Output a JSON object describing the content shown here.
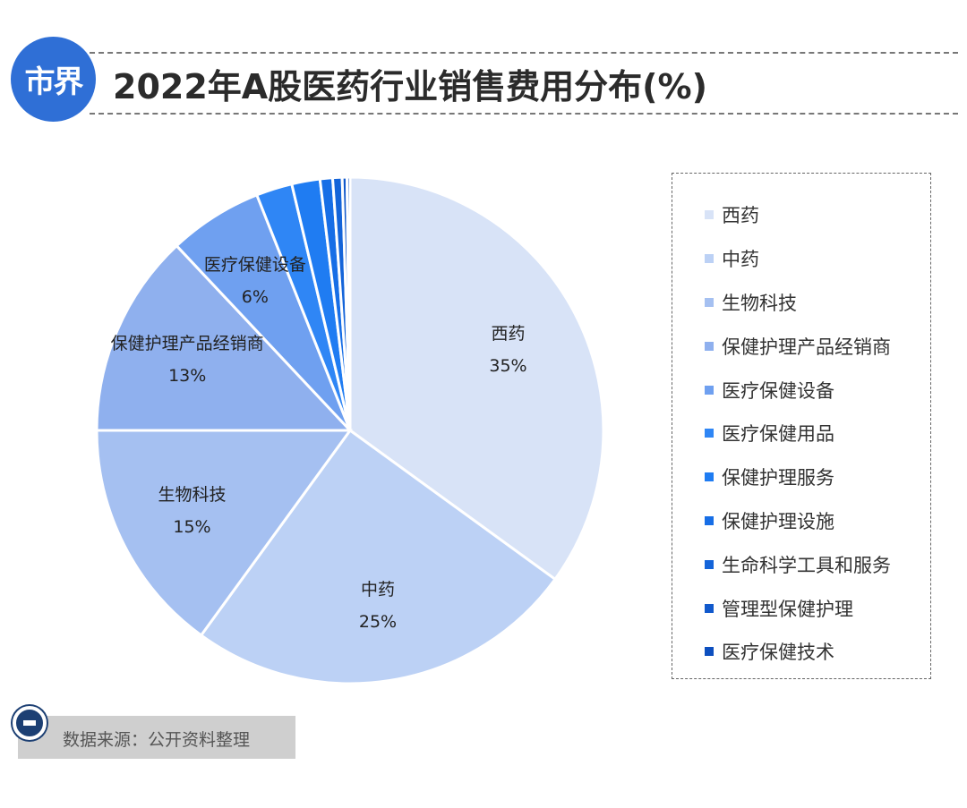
{
  "header": {
    "logo_text": "市界",
    "title": "2022年A股医药行业销售费用分布(%)"
  },
  "chart_data": {
    "type": "pie",
    "title": "2022年A股医药行业销售费用分布(%)",
    "categories": [
      "西药",
      "中药",
      "生物科技",
      "保健护理产品经销商",
      "医疗保健设备",
      "医疗保健用品",
      "保健护理服务",
      "保健护理设施",
      "生命科学工具和服务",
      "管理型保健护理",
      "医疗保健技术"
    ],
    "values": [
      35,
      25,
      15,
      13,
      6,
      2.3,
      1.8,
      0.8,
      0.6,
      0.3,
      0.2
    ],
    "data_labels": [
      "35%",
      "25%",
      "15%",
      "13%",
      "6%",
      "",
      "",
      "",
      "",
      "",
      ""
    ],
    "colors": [
      "#d8e3f7",
      "#bcd1f5",
      "#a5c0f1",
      "#8fb0ee",
      "#6fa0f0",
      "#2f86f5",
      "#1f7cf2",
      "#176ee6",
      "#1464d9",
      "#1159cc",
      "#0d4fbf"
    ],
    "legend_position": "right",
    "source": "数据来源：公开资料整理"
  }
}
